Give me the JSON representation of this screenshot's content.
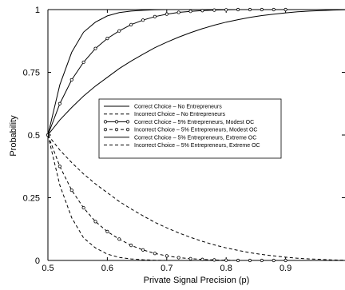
{
  "chart_data": {
    "type": "line",
    "title": "",
    "xlabel": "Private Signal Precision (p)",
    "ylabel": "Probability",
    "xlim": [
      0.5,
      1.0
    ],
    "ylim": [
      0,
      1
    ],
    "x_ticks": [
      0.5,
      0.6,
      0.7,
      0.8,
      0.9
    ],
    "x_tick_labels": [
      "0.5",
      "0.6",
      "0.7",
      "0.8",
      "0.9"
    ],
    "y_ticks": [
      0,
      0.25,
      0.5,
      0.75,
      1
    ],
    "y_tick_labels": [
      "0",
      "0.25",
      "0.5",
      "0.75",
      "1"
    ],
    "grid": false,
    "legend_position": "center",
    "x": [
      0.5,
      0.52,
      0.54,
      0.56,
      0.58,
      0.6,
      0.62,
      0.64,
      0.66,
      0.68,
      0.7,
      0.72,
      0.74,
      0.76,
      0.78,
      0.8,
      0.82,
      0.84,
      0.86,
      0.88,
      0.9,
      0.92,
      0.94,
      0.96,
      0.98,
      1.0
    ],
    "series": [
      {
        "name": "Correct Choice – No Entrepreneurs",
        "style": "solid",
        "values": [
          0.5,
          0.7,
          0.83,
          0.91,
          0.95,
          0.975,
          0.988,
          0.994,
          0.997,
          0.999,
          1,
          1,
          1,
          1,
          1,
          1,
          1,
          1,
          1,
          1,
          1,
          1,
          1,
          1,
          1,
          1
        ]
      },
      {
        "name": "Incorrect Choice – No Entrepreneurs",
        "style": "dashed",
        "values": [
          0.5,
          0.3,
          0.17,
          0.09,
          0.05,
          0.025,
          0.012,
          0.006,
          0.003,
          0.001,
          0,
          0,
          0,
          0,
          0,
          0,
          0,
          0,
          0,
          0,
          0,
          0,
          0,
          0,
          0,
          0
        ]
      },
      {
        "name": "Correct Choice – 5% Entrepreneurs, Modest OC",
        "style": "solid-circles",
        "values": [
          0.5,
          0.625,
          0.72,
          0.79,
          0.845,
          0.885,
          0.915,
          0.94,
          0.958,
          0.972,
          0.982,
          0.989,
          0.993,
          0.996,
          0.998,
          0.999,
          1,
          1,
          1,
          1,
          1,
          1,
          1,
          1,
          1,
          1
        ]
      },
      {
        "name": "Incorrect Choice – 5% Entrepreneurs, Modest OC",
        "style": "dashed-circles",
        "values": [
          0.5,
          0.375,
          0.28,
          0.21,
          0.155,
          0.115,
          0.085,
          0.06,
          0.042,
          0.028,
          0.018,
          0.011,
          0.007,
          0.004,
          0.002,
          0.001,
          0,
          0,
          0,
          0,
          0,
          0,
          0,
          0,
          0,
          0
        ]
      },
      {
        "name": "Correct Choice – 5% Entrepreneurs, Extreme OC",
        "style": "solid",
        "values": [
          0.5,
          0.56,
          0.61,
          0.655,
          0.695,
          0.73,
          0.765,
          0.795,
          0.822,
          0.848,
          0.87,
          0.89,
          0.908,
          0.924,
          0.938,
          0.95,
          0.96,
          0.969,
          0.976,
          0.982,
          0.987,
          0.991,
          0.994,
          0.996,
          0.998,
          0.999
        ]
      },
      {
        "name": "Incorrect Choice – 5% Entrepreneurs, Extreme OC",
        "style": "dashed",
        "values": [
          0.5,
          0.44,
          0.39,
          0.345,
          0.305,
          0.27,
          0.235,
          0.205,
          0.178,
          0.152,
          0.13,
          0.11,
          0.092,
          0.076,
          0.062,
          0.05,
          0.04,
          0.031,
          0.024,
          0.018,
          0.013,
          0.009,
          0.006,
          0.004,
          0.002,
          0.001
        ]
      }
    ]
  }
}
